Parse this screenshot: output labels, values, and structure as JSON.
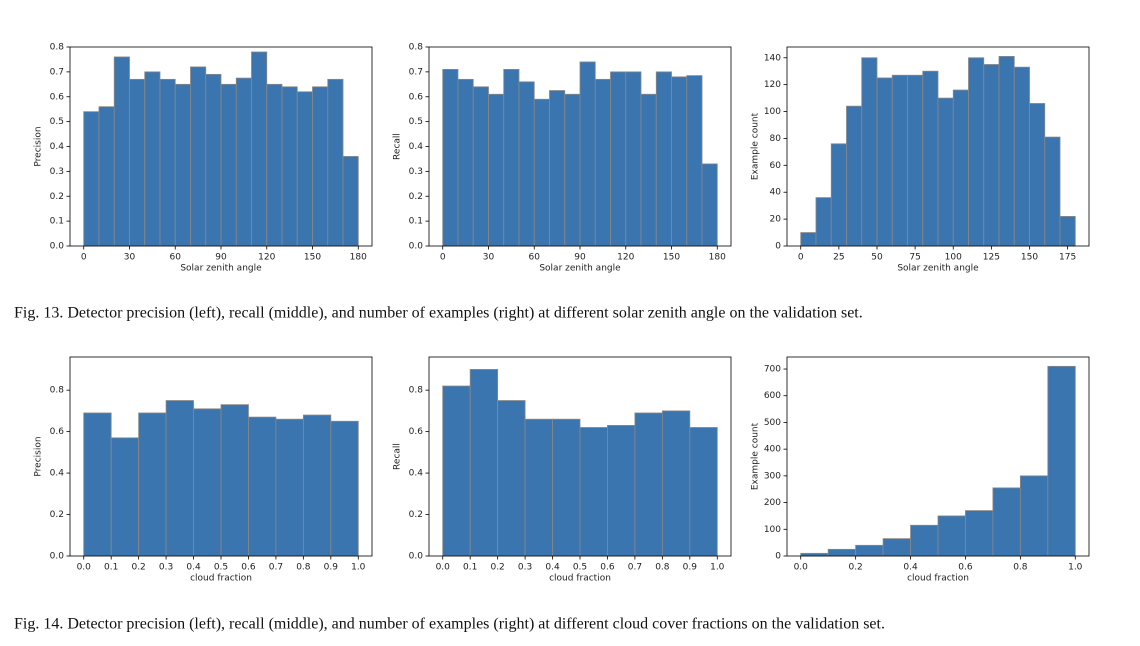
{
  "captions": [
    "Fig. 13.  Detector precision (left), recall (middle), and number of examples (right) at different solar zenith angle on the validation set.",
    "Fig. 14.  Detector precision (left), recall (middle), and number of examples (right) at different cloud cover fractions on the validation set."
  ],
  "chart_data": [
    {
      "type": "histogram",
      "xlabel": "Solar zenith angle",
      "ylabel": "Precision",
      "color": "#3b75af",
      "edgecolor": "#888888",
      "bins": [
        0,
        10,
        20,
        30,
        40,
        50,
        60,
        70,
        80,
        90,
        100,
        110,
        120,
        130,
        140,
        150,
        160,
        170,
        180
      ],
      "values": [
        0.54,
        0.56,
        0.76,
        0.67,
        0.7,
        0.67,
        0.65,
        0.72,
        0.69,
        0.65,
        0.675,
        0.78,
        0.65,
        0.64,
        0.62,
        0.64,
        0.67,
        0.36
      ],
      "xlim": [
        -9,
        189
      ],
      "xticks": [
        0,
        30,
        60,
        90,
        120,
        150,
        180
      ],
      "ylim": [
        0,
        0.8
      ],
      "yticks": [
        {
          "value": 0,
          "label": "0.0"
        },
        0.1,
        0.2,
        0.3,
        0.4,
        0.5,
        0.6,
        0.7,
        0.8
      ]
    },
    {
      "type": "histogram",
      "xlabel": "Solar zenith angle",
      "ylabel": "Recall",
      "color": "#3b75af",
      "edgecolor": "#888888",
      "bins": [
        0,
        10,
        20,
        30,
        40,
        50,
        60,
        70,
        80,
        90,
        100,
        110,
        120,
        130,
        140,
        150,
        160,
        170,
        180
      ],
      "values": [
        0.71,
        0.67,
        0.64,
        0.61,
        0.71,
        0.66,
        0.59,
        0.625,
        0.61,
        0.74,
        0.67,
        0.7,
        0.7,
        0.61,
        0.7,
        0.68,
        0.685,
        0.33
      ],
      "xlim": [
        -9,
        189
      ],
      "xticks": [
        0,
        30,
        60,
        90,
        120,
        150,
        180
      ],
      "ylim": [
        0,
        0.8
      ],
      "yticks": [
        {
          "value": 0,
          "label": "0.0"
        },
        0.1,
        0.2,
        0.3,
        0.4,
        0.5,
        0.6,
        0.7,
        0.8
      ]
    },
    {
      "type": "histogram",
      "xlabel": "Solar zenith angle",
      "ylabel": "Example count",
      "color": "#3b75af",
      "edgecolor": "#888888",
      "bins": [
        0,
        10,
        20,
        30,
        40,
        50,
        60,
        70,
        80,
        90,
        100,
        110,
        120,
        130,
        140,
        150,
        160,
        170,
        180
      ],
      "values": [
        10,
        36,
        76,
        104,
        140,
        125,
        127,
        127,
        130,
        110,
        116,
        140,
        135,
        141,
        133,
        106,
        81,
        22
      ],
      "xlim": [
        -9,
        189
      ],
      "xticks": [
        0,
        25,
        50,
        75,
        100,
        125,
        150,
        175
      ],
      "ylim": [
        0,
        148
      ],
      "yticks": [
        0,
        20,
        40,
        60,
        80,
        100,
        120,
        140
      ]
    },
    {
      "type": "histogram",
      "xlabel": "cloud fraction",
      "ylabel": "Precision",
      "color": "#3b75af",
      "edgecolor": "#888888",
      "bins": [
        0,
        0.1,
        0.2,
        0.3,
        0.4,
        0.5,
        0.6,
        0.7,
        0.8,
        0.9,
        1
      ],
      "values": [
        0.69,
        0.57,
        0.69,
        0.75,
        0.71,
        0.73,
        0.67,
        0.66,
        0.68,
        0.65
      ],
      "xlim": [
        -0.05,
        1.05
      ],
      "xticks": [
        {
          "value": 0,
          "label": "0.0"
        },
        0.1,
        0.2,
        0.3,
        0.4,
        0.5,
        0.6,
        0.7,
        0.8,
        0.9,
        {
          "value": 1,
          "label": "1.0"
        }
      ],
      "ylim": [
        0,
        0.96
      ],
      "yticks": [
        {
          "value": 0,
          "label": "0.0"
        },
        0.2,
        0.4,
        0.6,
        0.8
      ]
    },
    {
      "type": "histogram",
      "xlabel": "cloud fraction",
      "ylabel": "Recall",
      "color": "#3b75af",
      "edgecolor": "#888888",
      "bins": [
        0,
        0.1,
        0.2,
        0.3,
        0.4,
        0.5,
        0.6,
        0.7,
        0.8,
        0.9,
        1
      ],
      "values": [
        0.82,
        0.9,
        0.75,
        0.66,
        0.66,
        0.62,
        0.63,
        0.69,
        0.7,
        0.62
      ],
      "xlim": [
        -0.05,
        1.05
      ],
      "xticks": [
        {
          "value": 0,
          "label": "0.0"
        },
        0.1,
        0.2,
        0.3,
        0.4,
        0.5,
        0.6,
        0.7,
        0.8,
        0.9,
        {
          "value": 1,
          "label": "1.0"
        }
      ],
      "ylim": [
        0,
        0.96
      ],
      "yticks": [
        {
          "value": 0,
          "label": "0.0"
        },
        0.2,
        0.4,
        0.6,
        0.8
      ]
    },
    {
      "type": "histogram",
      "xlabel": "cloud fraction",
      "ylabel": "Example count",
      "color": "#3b75af",
      "edgecolor": "#888888",
      "bins": [
        0,
        0.1,
        0.2,
        0.3,
        0.4,
        0.5,
        0.6,
        0.7,
        0.8,
        0.9,
        1
      ],
      "values": [
        10,
        25,
        40,
        65,
        115,
        150,
        170,
        255,
        300,
        710
      ],
      "xlim": [
        -0.05,
        1.05
      ],
      "xticks": [
        {
          "value": 0,
          "label": "0.0"
        },
        0.2,
        0.4,
        0.6,
        0.8,
        {
          "value": 1,
          "label": "1.0"
        }
      ],
      "ylim": [
        0,
        745
      ],
      "yticks": [
        0,
        100,
        200,
        300,
        400,
        500,
        600,
        700
      ]
    }
  ]
}
